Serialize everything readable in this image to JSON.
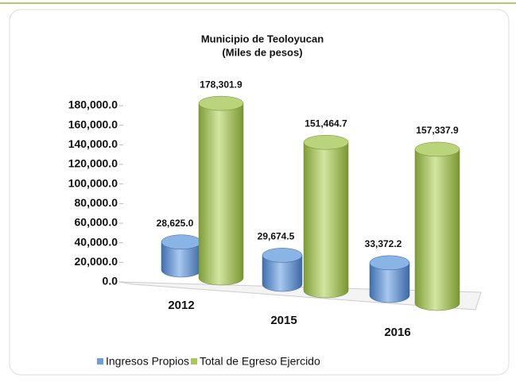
{
  "chart_data": {
    "type": "bar",
    "title": "Municipio de Teoloyucan",
    "subtitle": "(Miles de pesos)",
    "categories": [
      "2012",
      "2015",
      "2016"
    ],
    "series": [
      {
        "name": "Ingresos Propios",
        "color": "#6f9fd8",
        "values": [
          28625.0,
          29674.5,
          33372.2
        ],
        "value_labels": [
          "28,625.0",
          "29,674.5",
          "33,372.2"
        ]
      },
      {
        "name": "Total de Egreso Ejercido",
        "color": "#a9c65a",
        "values": [
          178301.9,
          151464.7,
          157337.9
        ],
        "value_labels": [
          "178,301.9",
          "151,464.7",
          "157,337.9"
        ]
      }
    ],
    "ylim": [
      0,
      180000
    ],
    "yticks": [
      {
        "value": 0,
        "label": "0.0"
      },
      {
        "value": 20000,
        "label": "20,000.0"
      },
      {
        "value": 40000,
        "label": "40,000.0"
      },
      {
        "value": 60000,
        "label": "60,000.0"
      },
      {
        "value": 80000,
        "label": "80,000.0"
      },
      {
        "value": 100000,
        "label": "100,000.0"
      },
      {
        "value": 120000,
        "label": "120,000.0"
      },
      {
        "value": 140000,
        "label": "140,000.0"
      },
      {
        "value": 160000,
        "label": "160,000.0"
      },
      {
        "value": 180000,
        "label": "180,000.0"
      }
    ]
  }
}
